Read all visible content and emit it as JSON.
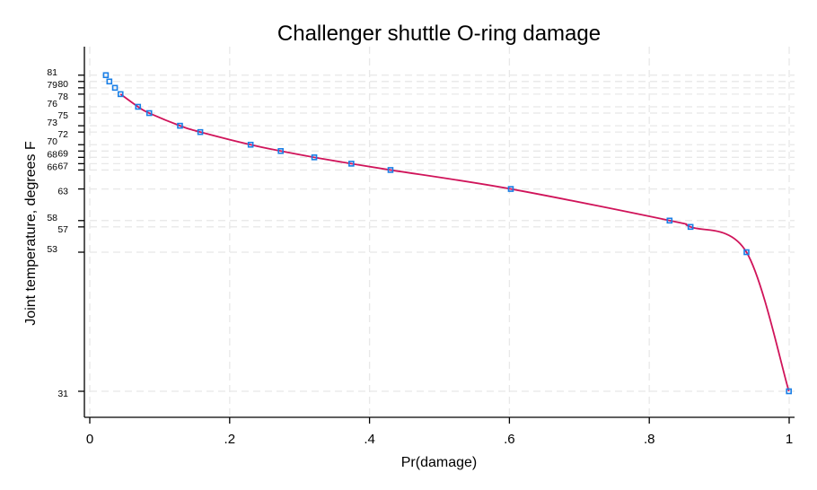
{
  "chart_data": {
    "type": "scatter",
    "title": "Challenger shuttle O-ring damage",
    "xlabel": "Pr(damage)",
    "ylabel": "Joint temperature, degrees F",
    "xlim": [
      0,
      1
    ],
    "ylim": [
      27,
      84
    ],
    "x_ticks": [
      0,
      0.2,
      0.4,
      0.6,
      0.8,
      1
    ],
    "x_tick_labels": [
      "0",
      ".2",
      ".4",
      ".6",
      ".8",
      "1"
    ],
    "y_ticks": [
      81,
      80,
      79,
      78,
      76,
      75,
      73,
      72,
      70,
      69,
      68,
      67,
      66,
      63,
      58,
      57,
      53,
      31
    ],
    "grid": true,
    "marker_color": "#1a7fe6",
    "line_color": "#d0145a",
    "points": [
      {
        "x": 0.023,
        "y": 81
      },
      {
        "x": 0.028,
        "y": 80
      },
      {
        "x": 0.036,
        "y": 79
      },
      {
        "x": 0.044,
        "y": 78
      },
      {
        "x": 0.069,
        "y": 76
      },
      {
        "x": 0.085,
        "y": 75
      },
      {
        "x": 0.129,
        "y": 73
      },
      {
        "x": 0.158,
        "y": 72
      },
      {
        "x": 0.23,
        "y": 70
      },
      {
        "x": 0.273,
        "y": 69
      },
      {
        "x": 0.321,
        "y": 68
      },
      {
        "x": 0.374,
        "y": 67
      },
      {
        "x": 0.43,
        "y": 66
      },
      {
        "x": 0.602,
        "y": 63
      },
      {
        "x": 0.829,
        "y": 58
      },
      {
        "x": 0.859,
        "y": 57
      },
      {
        "x": 0.939,
        "y": 53
      },
      {
        "x": 0.9996,
        "y": 31
      }
    ],
    "curve_from_y": 78
  }
}
